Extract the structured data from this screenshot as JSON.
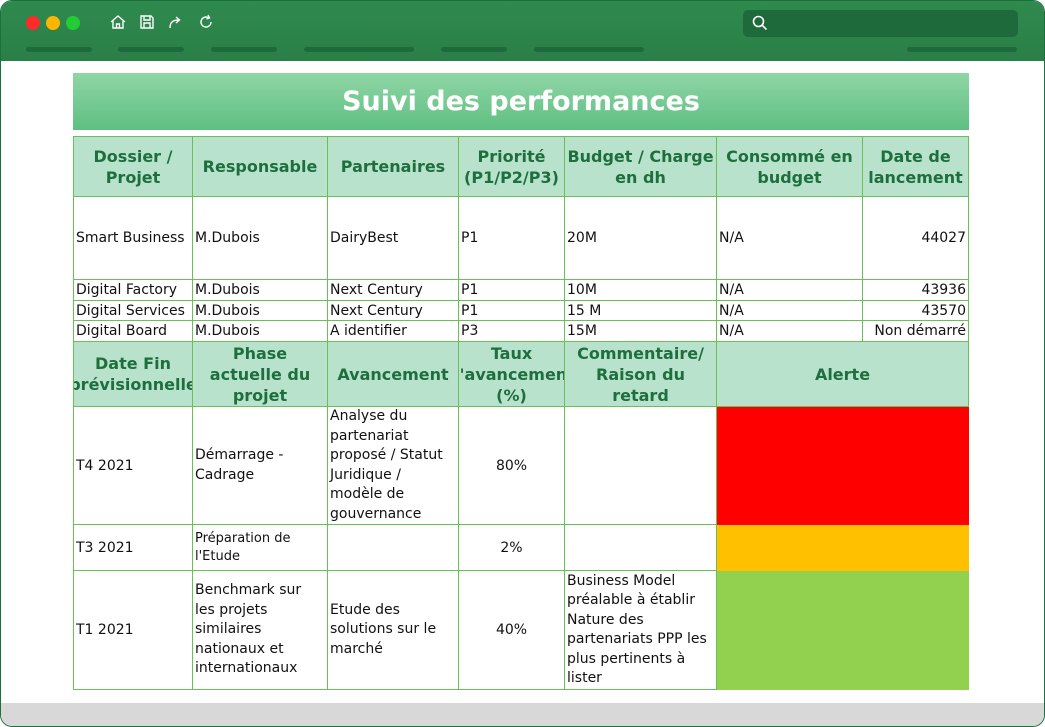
{
  "colors": {
    "titlebar": "#2a7f47",
    "header_fill": "#b8e2cc",
    "header_text": "#1e6f3e",
    "banner": "#5fbf82",
    "alert_red": "#ff0000",
    "alert_orange": "#ffc000",
    "alert_green": "#92d050"
  },
  "icons": [
    "home-icon",
    "save-icon",
    "redo-icon",
    "refresh-icon",
    "search-icon"
  ],
  "sheet": {
    "title": "Suivi des performances",
    "table1": {
      "headers": [
        "Dossier / Projet",
        "Responsable",
        "Partenaires",
        "Priorité (P1/P2/P3)",
        "Budget / Charge en dh",
        "Consommé en budget",
        "Date de lancement"
      ],
      "rows": [
        [
          "Smart Business",
          "M.Dubois",
          "DairyBest",
          "P1",
          "20M",
          "N/A",
          "44027"
        ],
        [
          "Digital Factory",
          "M.Dubois",
          "Next Century",
          "P1",
          "10M",
          "N/A",
          "43936"
        ],
        [
          "Digital Services",
          "M.Dubois",
          "Next Century",
          "P1",
          "15 M",
          "N/A",
          "43570"
        ],
        [
          "Digital Board",
          "M.Dubois",
          "A identifier",
          "P3",
          "15M",
          "N/A",
          "Non démarré"
        ]
      ]
    },
    "table2": {
      "headers": [
        "Date Fin prévisionnelle",
        "Phase actuelle du projet",
        "Avancement",
        "Taux d'avancement (%)",
        "Commentaire/ Raison du retard",
        "Alerte"
      ],
      "rows": [
        [
          "T4 2021",
          "Démarrage - Cadrage",
          "Analyse du partenariat proposé / Statut Juridique / modèle de gouvernance",
          "80%",
          "",
          "red"
        ],
        [
          "T3 2021",
          "Préparation de l'Etude",
          "",
          "2%",
          "",
          "orange"
        ],
        [
          "T1 2021",
          "Benchmark sur les projets similaires nationaux et internationaux",
          "Etude des solutions sur le marché",
          "40%",
          "Business Model préalable à établir Nature des partenariats PPP les plus pertinents à lister",
          "green"
        ]
      ]
    }
  }
}
